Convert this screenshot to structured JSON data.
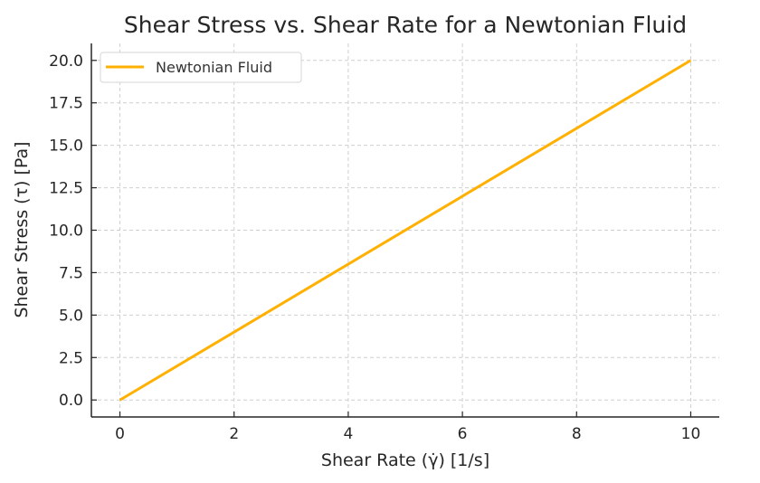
{
  "chart_data": {
    "type": "line",
    "title": "Shear Stress vs. Shear Rate for a Newtonian Fluid",
    "xlabel": "Shear Rate (γ̇) [1/s]",
    "ylabel": "Shear Stress (τ) [Pa]",
    "xlim": [
      -0.5,
      10.5
    ],
    "ylim": [
      -1,
      21
    ],
    "xticks": [
      "0",
      "2",
      "4",
      "6",
      "8",
      "10"
    ],
    "yticks": [
      "0.0",
      "2.5",
      "5.0",
      "7.5",
      "10.0",
      "12.5",
      "15.0",
      "17.5",
      "20.0"
    ],
    "grid": true,
    "legend": "top-left",
    "series": [
      {
        "name": "Newtonian Fluid",
        "color": "#FFB000",
        "x": [
          0,
          10
        ],
        "y": [
          0,
          20
        ]
      }
    ]
  }
}
